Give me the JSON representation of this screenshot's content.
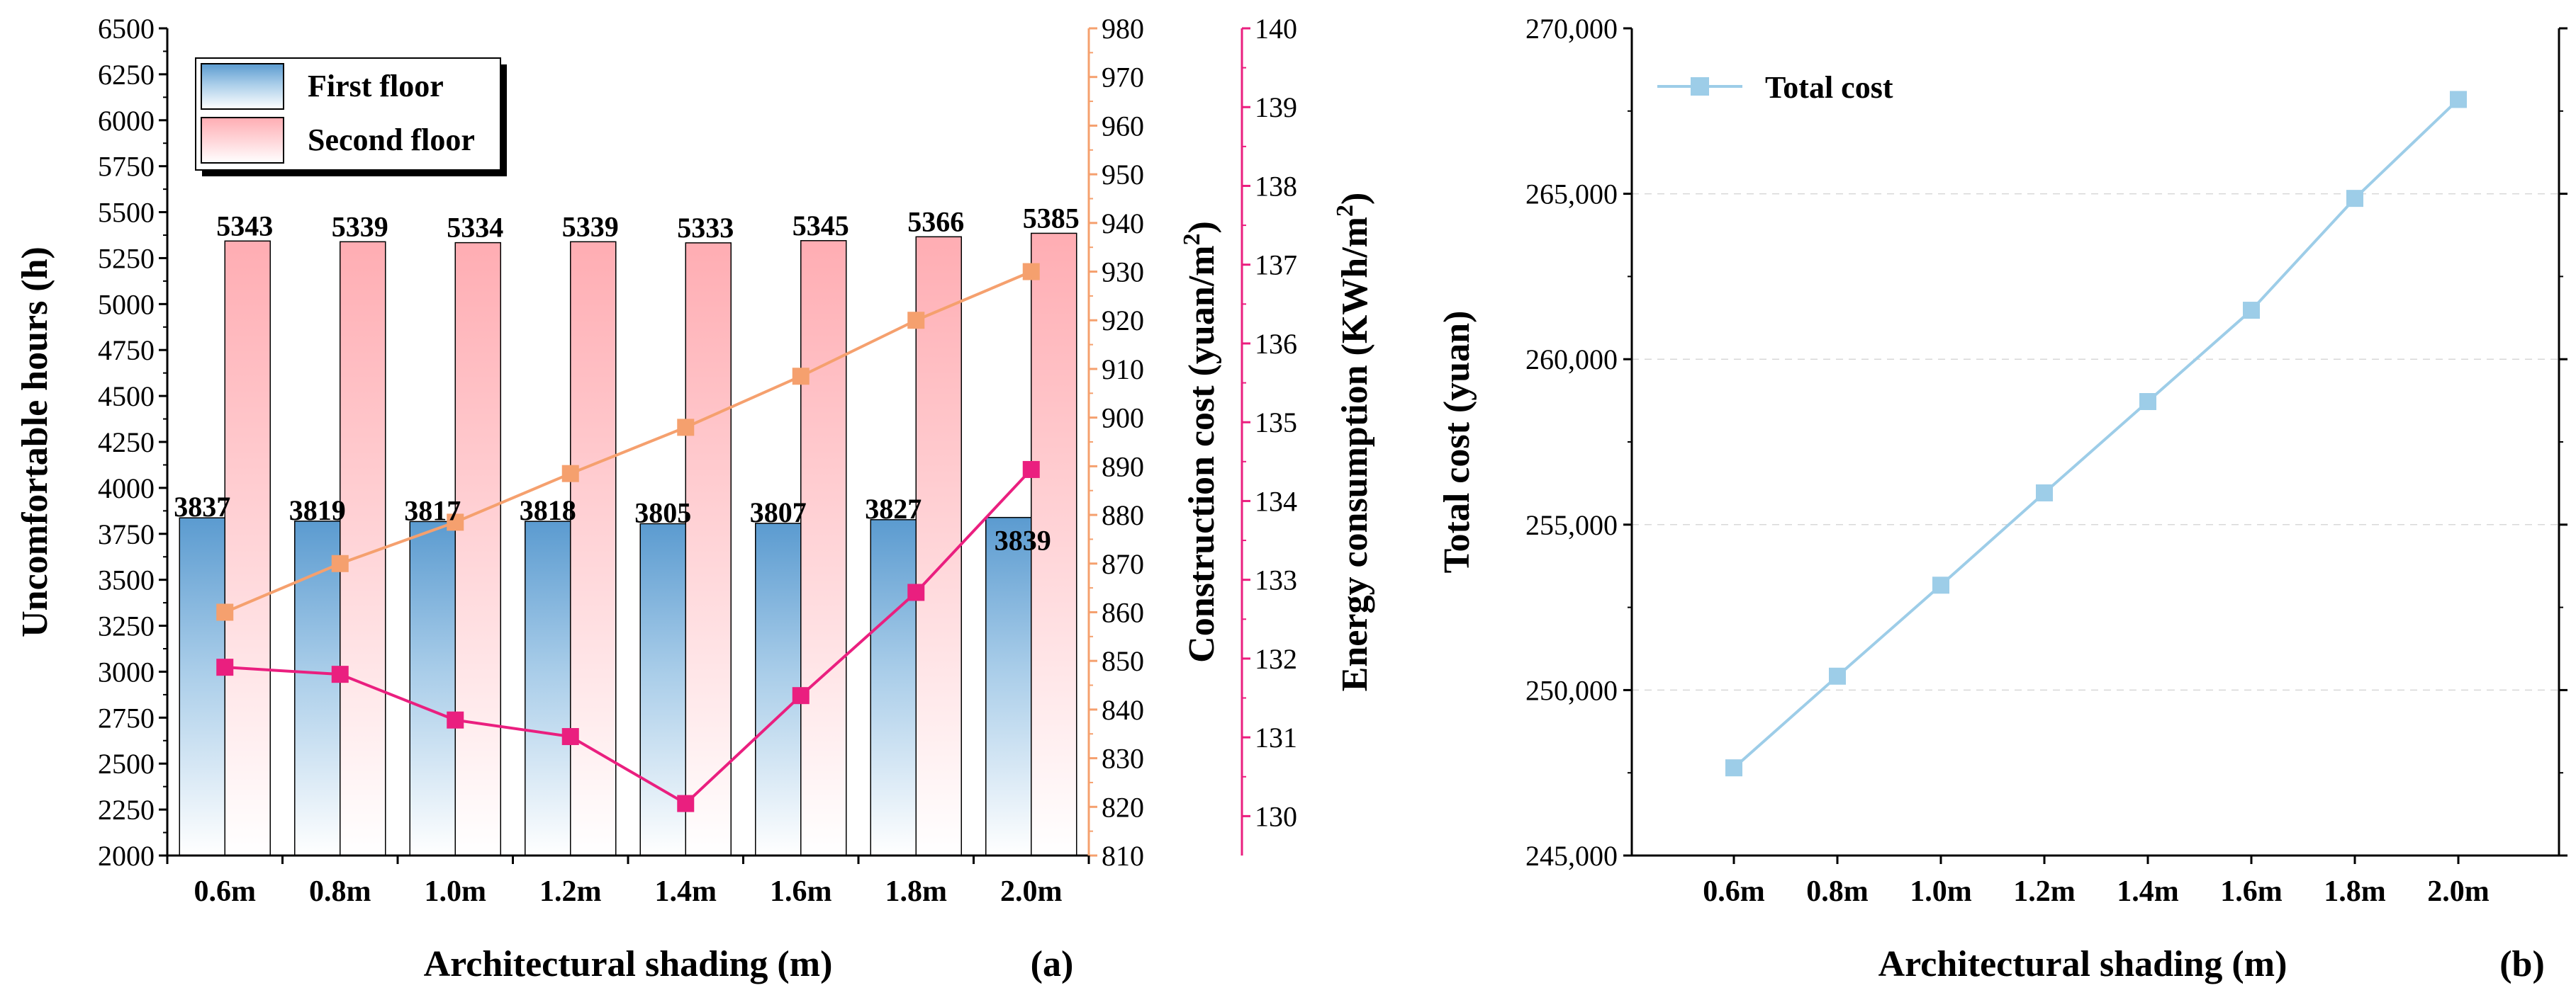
{
  "chart_data": [
    {
      "type": "bar",
      "panel_label": "(a)",
      "xlabel": "Architectural shading (m)",
      "categories": [
        "0.6m",
        "0.8m",
        "1.0m",
        "1.2m",
        "1.4m",
        "1.6m",
        "1.8m",
        "2.0m"
      ],
      "ylabel": "Uncomfortable hours (h)",
      "ylim": [
        2000,
        6500
      ],
      "yticks": [
        "2000",
        "2250",
        "2500",
        "2750",
        "3000",
        "3250",
        "3500",
        "3750",
        "4000",
        "4250",
        "4500",
        "4750",
        "5000",
        "5250",
        "5500",
        "5750",
        "6000",
        "6250",
        "6500"
      ],
      "series": [
        {
          "name": "First floor",
          "values": [
            3837,
            3819,
            3817,
            3818,
            3805,
            3807,
            3827,
            3839
          ],
          "labels": [
            "3837",
            "3819",
            "3817",
            "3818",
            "3805",
            "3807",
            "3827",
            "3839"
          ],
          "color_top": "#5b9bd0",
          "color_bottom": "#ffffff"
        },
        {
          "name": "Second floor",
          "values": [
            5343,
            5339,
            5334,
            5339,
            5333,
            5345,
            5366,
            5385
          ],
          "labels": [
            "5343",
            "5339",
            "5334",
            "5339",
            "5333",
            "5345",
            "5366",
            "5385"
          ],
          "color_top": "#ffadb3",
          "color_bottom": "#ffffff"
        }
      ],
      "line_series": [
        {
          "name": "Construction cost",
          "axis_title_prefix": "Construction cost (yuan/m",
          "axis_title_sup": "2",
          "axis_title_suffix": ")",
          "ylim": [
            810,
            980
          ],
          "yticks": [
            "810",
            "820",
            "830",
            "840",
            "850",
            "860",
            "870",
            "880",
            "890",
            "900",
            "910",
            "920",
            "930",
            "940",
            "950",
            "960",
            "970",
            "980"
          ],
          "values": [
            860,
            870,
            878.5,
            888.5,
            898,
            908.5,
            920,
            930
          ],
          "color": "#f5a06e"
        },
        {
          "name": "Energy consumption",
          "axis_title_prefix": "Energy consumption (KWh/m",
          "axis_title_sup": "2",
          "axis_title_suffix": ")",
          "ylim": [
            129.5,
            140
          ],
          "yticks": [
            "130",
            "131",
            "132",
            "133",
            "134",
            "135",
            "136",
            "137",
            "138",
            "139",
            "140"
          ],
          "values": [
            131.89,
            131.8,
            131.22,
            131.01,
            130.16,
            131.53,
            132.84,
            134.4
          ],
          "color": "#ea1f7f"
        }
      ]
    },
    {
      "type": "line",
      "panel_label": "(b)",
      "xlabel": "Architectural shading (m)",
      "ylabel": "Total cost (yuan)",
      "categories": [
        "0.6m",
        "0.8m",
        "1.0m",
        "1.2m",
        "1.4m",
        "1.6m",
        "1.8m",
        "2.0m"
      ],
      "ylim": [
        245000,
        270000
      ],
      "yticks": [
        "245,000",
        "250,000",
        "255,000",
        "260,000",
        "265,000",
        "270,000"
      ],
      "series": [
        {
          "name": "Total cost",
          "values": [
            247650,
            250420,
            253170,
            255960,
            258720,
            261480,
            264860,
            267850
          ],
          "color": "#9dcde8"
        }
      ]
    }
  ]
}
